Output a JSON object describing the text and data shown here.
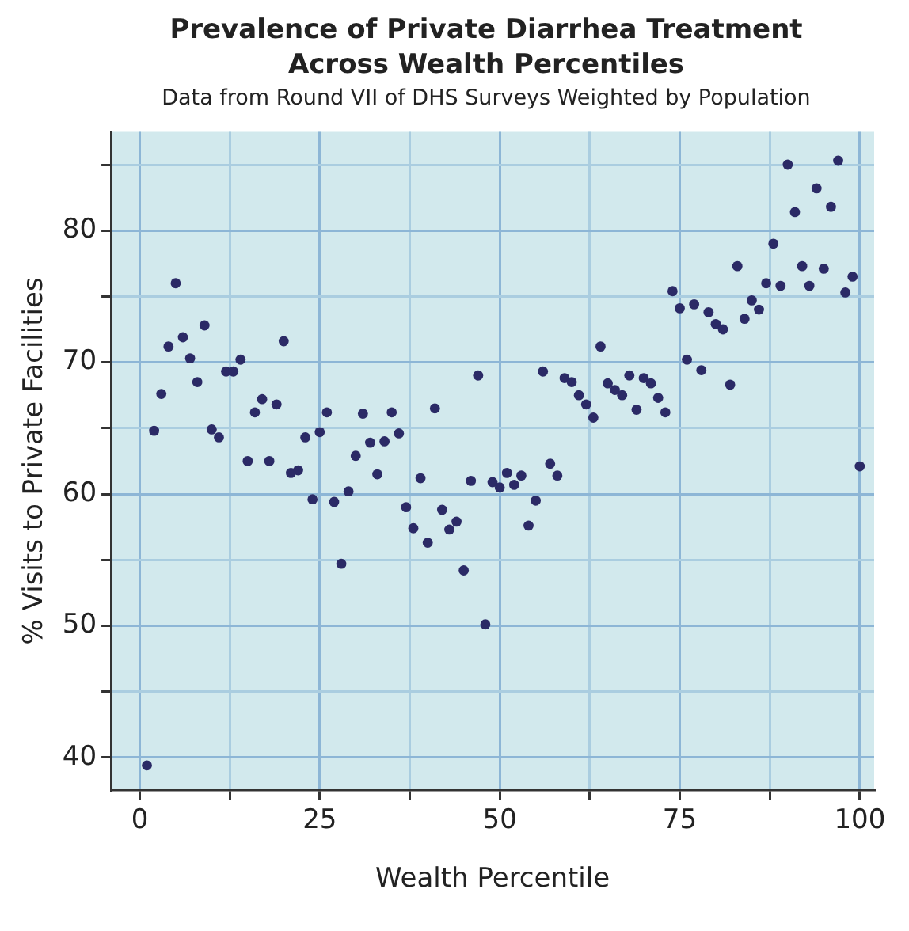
{
  "chart_data": {
    "type": "scatter",
    "title": "Prevalence of Private Diarrhea Treatment Across Wealth Percentiles",
    "subtitle": "Data from Round VII of DHS Surveys Weighted by Population",
    "xlabel": "Wealth Percentile",
    "ylabel": "% Visits to Private Facilities",
    "x": [
      1,
      2,
      3,
      4,
      5,
      6,
      7,
      8,
      9,
      10,
      11,
      12,
      13,
      14,
      15,
      16,
      17,
      18,
      19,
      20,
      21,
      22,
      23,
      24,
      25,
      26,
      27,
      28,
      29,
      30,
      31,
      32,
      33,
      34,
      35,
      36,
      37,
      38,
      39,
      40,
      41,
      42,
      43,
      44,
      45,
      46,
      47,
      48,
      49,
      50,
      51,
      52,
      53,
      54,
      55,
      56,
      57,
      58,
      59,
      60,
      61,
      62,
      63,
      64,
      65,
      66,
      67,
      68,
      69,
      70,
      71,
      72,
      73,
      74,
      75,
      76,
      77,
      78,
      79,
      80,
      81,
      82,
      83,
      84,
      85,
      86,
      87,
      88,
      89,
      90,
      91,
      92,
      93,
      94,
      95,
      96,
      97,
      98,
      99,
      100
    ],
    "values": [
      39.4,
      64.8,
      67.6,
      71.2,
      76.0,
      71.9,
      70.3,
      68.5,
      72.8,
      64.9,
      64.3,
      69.3,
      69.3,
      70.2,
      62.5,
      66.2,
      67.2,
      62.5,
      66.8,
      71.6,
      61.6,
      61.8,
      64.3,
      59.6,
      64.7,
      66.2,
      59.4,
      54.7,
      60.2,
      62.9,
      66.1,
      63.9,
      61.5,
      64.0,
      66.2,
      64.6,
      59.0,
      57.4,
      61.2,
      56.3,
      66.5,
      58.8,
      57.3,
      57.9,
      54.2,
      61.0,
      69.0,
      50.1,
      60.9,
      60.5,
      61.6,
      60.7,
      61.4,
      57.6,
      59.5,
      69.3,
      62.3,
      61.4,
      68.8,
      68.5,
      67.5,
      66.8,
      65.8,
      71.2,
      68.4,
      67.9,
      67.5,
      69.0,
      66.4,
      68.8,
      68.4,
      67.3,
      66.2,
      75.4,
      74.1,
      70.2,
      74.4,
      69.4,
      73.8,
      72.9,
      72.5,
      68.3,
      77.3,
      73.3,
      74.7,
      74.0,
      76.0,
      79.0,
      75.8,
      85.0,
      81.4,
      77.3,
      75.8,
      83.2,
      77.1,
      81.8,
      85.3,
      75.3,
      76.5,
      62.1
    ],
    "color": "#2b2a66",
    "marker": "circle",
    "grid": true,
    "xlim": [
      -4,
      102
    ],
    "xticks": [
      0,
      {
        "value": 12.5,
        "label": null
      },
      25,
      {
        "value": 37.5,
        "label": null
      },
      50,
      {
        "value": 62.5,
        "label": null
      },
      75,
      {
        "value": 87.5,
        "label": null
      },
      100
    ],
    "ylim": [
      37.5,
      87.5
    ],
    "yticks": [
      40,
      {
        "value": 45,
        "label": null
      },
      50,
      {
        "value": 55,
        "label": null
      },
      60,
      {
        "value": 65,
        "label": null
      },
      70,
      {
        "value": 75,
        "label": null
      },
      80,
      {
        "value": 85,
        "label": null
      }
    ]
  }
}
